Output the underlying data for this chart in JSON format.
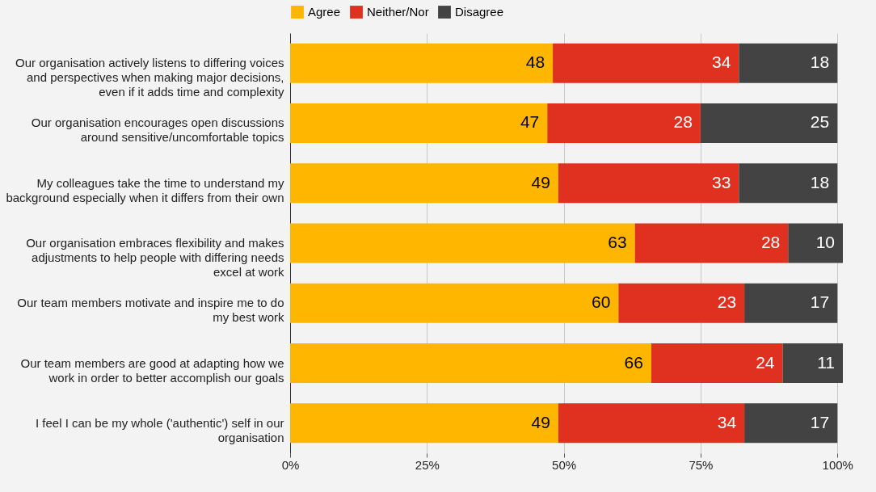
{
  "chart_data": {
    "type": "bar",
    "orientation": "horizontal",
    "stacked": true,
    "data_labels": true,
    "grid": "x",
    "legend": "top",
    "categories": [
      "Our organisation actively listens to differing voices and perspectives when making major decisions, even if it adds time and complexity",
      "Our organisation encourages open discussions around sensitive/uncomfortable topics",
      "My colleagues take the time to understand my background especially when it differs from their own",
      "Our organisation embraces flexibility and makes adjustments to help people with differing needs excel at work",
      "Our team members motivate and inspire me to do my best work",
      "Our team members are good at adapting how we work in order to better accomplish our goals",
      "I feel I can be my whole ('authentic') self in our organisation"
    ],
    "series": [
      {
        "name": "Agree",
        "color": "#ffb600",
        "values": [
          48,
          47,
          49,
          63,
          60,
          66,
          49
        ]
      },
      {
        "name": "Neither/Nor",
        "color": "#e03120",
        "values": [
          34,
          28,
          33,
          28,
          23,
          24,
          34
        ]
      },
      {
        "name": "Disagree",
        "color": "#434343",
        "values": [
          18,
          25,
          18,
          10,
          17,
          11,
          17
        ]
      }
    ],
    "xlim": [
      0,
      101
    ],
    "xticks": [
      {
        "value": 0,
        "label": "0%"
      },
      {
        "value": 25,
        "label": "25%"
      },
      {
        "value": 50,
        "label": "50%"
      },
      {
        "value": 75,
        "label": "75%"
      },
      {
        "value": 100,
        "label": "100%"
      }
    ]
  }
}
